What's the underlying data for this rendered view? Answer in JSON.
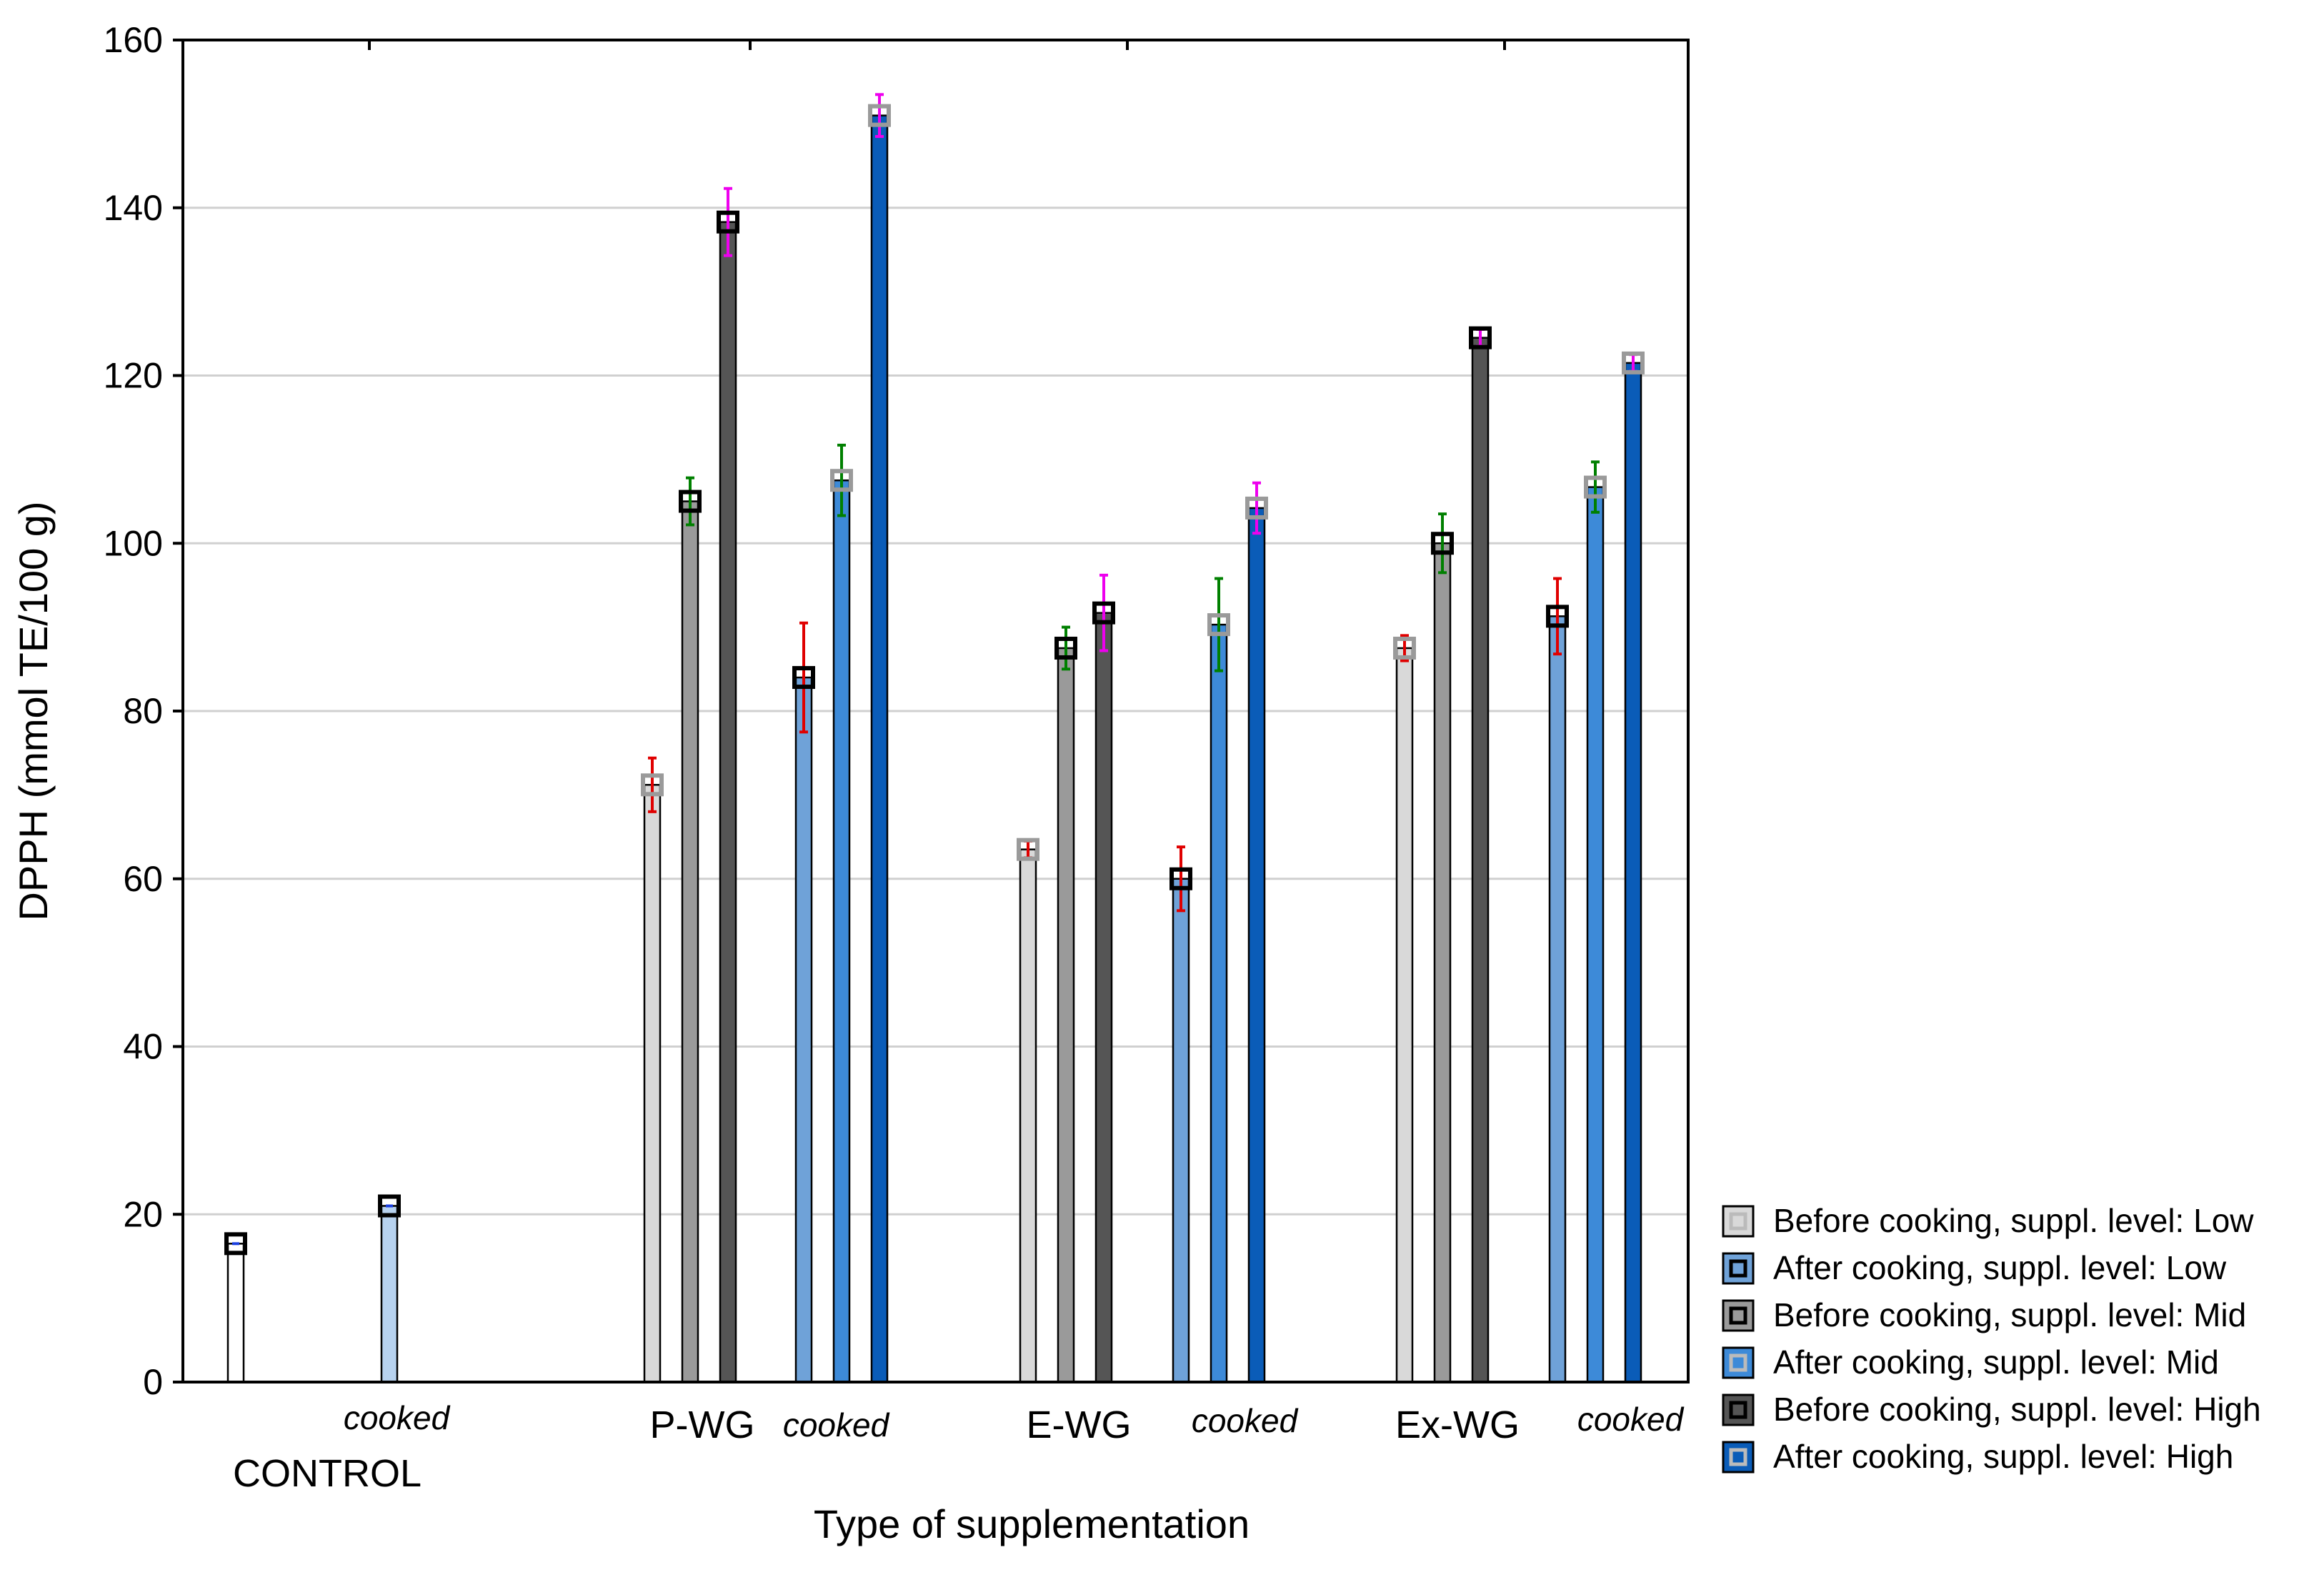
{
  "chart_data": {
    "type": "bar",
    "xlabel": "Type of supplementation",
    "ylabel": "DPPH (mmol TE/100 g)",
    "ylim": [
      0,
      160
    ],
    "yticks": [
      0,
      20,
      40,
      60,
      80,
      100,
      120,
      140,
      160
    ],
    "grid": true,
    "legend_position": "bottom-right",
    "groups": [
      {
        "label": "CONTROL",
        "cooked_label": "cooked"
      },
      {
        "label": "P-WG",
        "cooked_label": "cooked"
      },
      {
        "label": "E-WG",
        "cooked_label": "cooked"
      },
      {
        "label": "Ex-WG",
        "cooked_label": "cooked"
      }
    ],
    "series": [
      {
        "name": "Before cooking, suppl. level: Low",
        "color": "#d9d9d9",
        "marker": "#9a9a9a",
        "values": [
          16.5,
          71.2,
          63.5,
          87.5
        ],
        "err_low": [
          0,
          3.2,
          1.0,
          1.5
        ],
        "err_high": [
          0,
          3.2,
          1.0,
          1.5
        ],
        "err_color": "#e00000"
      },
      {
        "name": "After cooking, suppl. level: Low",
        "color": "#6fa2d8",
        "marker": "#000000",
        "values": [
          21.0,
          84.0,
          60.0,
          91.3
        ],
        "err_low": [
          0,
          6.5,
          3.8,
          4.5
        ],
        "err_high": [
          0,
          6.5,
          3.8,
          4.5
        ],
        "err_color": "#e00000"
      },
      {
        "name": "Before cooking, suppl. level: Mid",
        "color": "#9a9a9a",
        "marker": "#000000",
        "values": [
          null,
          105.0,
          87.5,
          100.0
        ],
        "err_low": [
          0,
          2.8,
          2.5,
          3.5
        ],
        "err_high": [
          0,
          2.8,
          2.5,
          3.5
        ],
        "err_color": "#008000"
      },
      {
        "name": "After cooking, suppl. level: Mid",
        "color": "#3d8ad8",
        "marker": "#9a9a9a",
        "values": [
          null,
          107.5,
          90.3,
          106.7
        ],
        "err_low": [
          0,
          4.2,
          5.5,
          3.0
        ],
        "err_high": [
          0,
          4.2,
          5.5,
          3.0
        ],
        "err_color": "#008000"
      },
      {
        "name": "Before cooking, suppl. level: High",
        "color": "#555555",
        "marker": "#000000",
        "values": [
          null,
          138.3,
          91.7,
          124.5
        ],
        "err_low": [
          0,
          4.0,
          4.5,
          1.0
        ],
        "err_high": [
          0,
          4.0,
          4.5,
          1.0
        ],
        "err_color": "#ee00ee"
      },
      {
        "name": "After cooking, suppl. level: High",
        "color": "#0a5cb8",
        "marker": "#9a9a9a",
        "values": [
          null,
          151.0,
          104.2,
          121.5
        ],
        "err_low": [
          0,
          2.5,
          3.0,
          1.0
        ],
        "err_high": [
          0,
          2.5,
          3.0,
          1.0
        ],
        "err_color": "#ee00ee"
      }
    ]
  }
}
